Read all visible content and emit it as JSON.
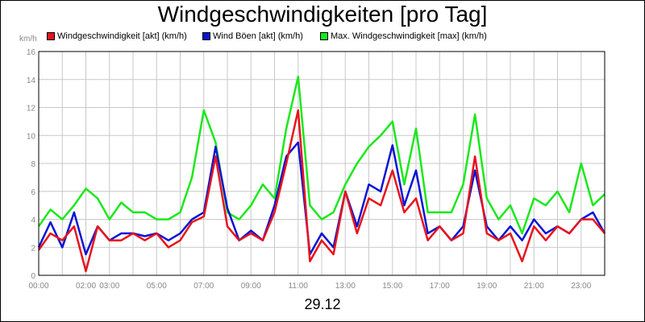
{
  "chart_data": {
    "type": "line",
    "title": "Windgeschwindigkeiten [pro Tag]",
    "ylabel": "km/h",
    "xlabel": "29.12",
    "ylim": [
      0,
      16
    ],
    "yticks": [
      0,
      2,
      4,
      6,
      8,
      10,
      12,
      14,
      16
    ],
    "xlim": [
      0,
      24
    ],
    "xticks": [
      {
        "v": 0,
        "label": "00:00"
      },
      {
        "v": 2,
        "label": "02:00"
      },
      {
        "v": 3,
        "label": "03:00"
      },
      {
        "v": 5,
        "label": "05:00"
      },
      {
        "v": 7,
        "label": "07:00"
      },
      {
        "v": 9,
        "label": "09:00"
      },
      {
        "v": 11,
        "label": "11:00"
      },
      {
        "v": 13,
        "label": "13:00"
      },
      {
        "v": 15,
        "label": "15:00"
      },
      {
        "v": 17,
        "label": "17:00"
      },
      {
        "v": 19,
        "label": "19:00"
      },
      {
        "v": 21,
        "label": "21:00"
      },
      {
        "v": 23,
        "label": "23:00"
      }
    ],
    "grid": true,
    "legend_position": "top",
    "x": [
      0.0,
      0.5,
      1.0,
      1.5,
      2.0,
      2.5,
      3.0,
      3.5,
      4.0,
      4.5,
      5.0,
      5.5,
      6.0,
      6.5,
      7.0,
      7.5,
      8.0,
      8.5,
      9.0,
      9.5,
      10.0,
      10.5,
      11.0,
      11.5,
      12.0,
      12.5,
      13.0,
      13.5,
      14.0,
      14.5,
      15.0,
      15.5,
      16.0,
      16.5,
      17.0,
      17.5,
      18.0,
      18.5,
      19.0,
      19.5,
      20.0,
      20.5,
      21.0,
      21.5,
      22.0,
      22.5,
      23.0,
      23.5,
      24.0
    ],
    "series": [
      {
        "name": "Windgeschwindigkeit [akt] (km/h)",
        "color": "#e8131b",
        "values": [
          1.8,
          3.0,
          2.5,
          3.5,
          0.3,
          3.5,
          2.5,
          2.5,
          3.0,
          2.5,
          3.0,
          2.0,
          2.5,
          3.8,
          4.2,
          8.5,
          3.5,
          2.5,
          3.0,
          2.5,
          4.5,
          8.0,
          11.8,
          1.0,
          2.5,
          1.5,
          6.0,
          3.0,
          5.5,
          5.0,
          7.5,
          4.5,
          5.5,
          2.5,
          3.5,
          2.5,
          3.0,
          8.5,
          3.0,
          2.5,
          3.0,
          1.0,
          3.5,
          2.5,
          3.5,
          3.0,
          4.0,
          4.0,
          3.0
        ]
      },
      {
        "name": "Wind Böen [akt] (km/h)",
        "color": "#0a14d4",
        "values": [
          2.0,
          3.8,
          2.0,
          4.5,
          1.5,
          3.5,
          2.5,
          3.0,
          3.0,
          2.8,
          3.0,
          2.5,
          3.0,
          4.0,
          4.5,
          9.2,
          4.8,
          2.5,
          3.2,
          2.5,
          5.0,
          8.5,
          9.5,
          1.5,
          3.0,
          2.0,
          6.0,
          3.5,
          6.5,
          6.0,
          9.3,
          5.0,
          7.5,
          3.0,
          3.5,
          2.5,
          3.5,
          7.5,
          3.5,
          2.5,
          3.5,
          2.5,
          4.0,
          3.0,
          3.5,
          3.0,
          4.0,
          4.5,
          3.0
        ]
      },
      {
        "name": "Max. Windgeschwindigkeit [max] (km/h)",
        "color": "#1be81b",
        "values": [
          3.5,
          4.7,
          4.0,
          5.0,
          6.2,
          5.5,
          4.0,
          5.2,
          4.5,
          4.5,
          4.0,
          4.0,
          4.5,
          7.0,
          11.8,
          9.5,
          4.5,
          4.0,
          5.0,
          6.5,
          5.5,
          10.5,
          14.2,
          5.0,
          4.0,
          4.5,
          6.5,
          8.0,
          9.2,
          10.0,
          11.0,
          6.5,
          10.5,
          4.5,
          4.5,
          4.5,
          6.5,
          11.5,
          5.5,
          4.0,
          5.0,
          3.0,
          5.5,
          5.0,
          6.0,
          4.5,
          8.0,
          5.0,
          5.8
        ]
      }
    ]
  }
}
